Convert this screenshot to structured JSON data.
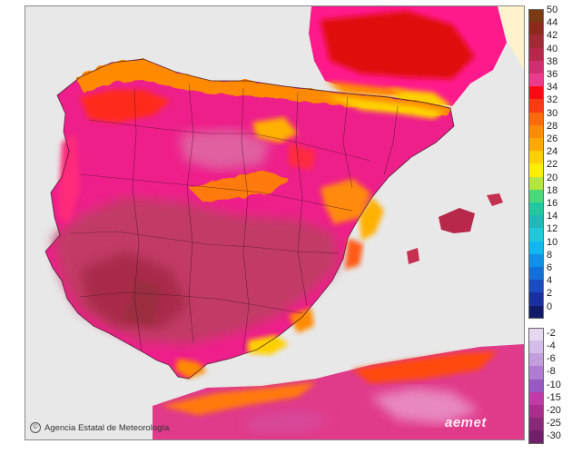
{
  "map": {
    "credit": "Agencia Estatal de Meteorología",
    "logo_text": "aemet",
    "credit_icon": "copyright-icon"
  },
  "legend": {
    "warm": [
      {
        "label": "50",
        "color": "#7a3a12"
      },
      {
        "label": "44",
        "color": "#8c2a1c"
      },
      {
        "label": "42",
        "color": "#a02b36"
      },
      {
        "label": "40",
        "color": "#b8284a"
      },
      {
        "label": "38",
        "color": "#d02e70"
      },
      {
        "label": "36",
        "color": "#ee3a8c"
      },
      {
        "label": "34",
        "color": "#ff0a14"
      },
      {
        "label": "32",
        "color": "#ff3a14"
      },
      {
        "label": "30",
        "color": "#ff6a0a"
      },
      {
        "label": "28",
        "color": "#ff8c00"
      },
      {
        "label": "26",
        "color": "#ffaa00"
      },
      {
        "label": "24",
        "color": "#ffd000"
      },
      {
        "label": "22",
        "color": "#ffee00"
      },
      {
        "label": "20",
        "color": "#b4e640"
      },
      {
        "label": "18",
        "color": "#4ad878"
      },
      {
        "label": "16",
        "color": "#22c8a0"
      },
      {
        "label": "14",
        "color": "#20b8b8"
      },
      {
        "label": "12",
        "color": "#20c8dc"
      },
      {
        "label": "10",
        "color": "#10b8f0"
      },
      {
        "label": "8",
        "color": "#1090e6"
      },
      {
        "label": "6",
        "color": "#1470d8"
      },
      {
        "label": "4",
        "color": "#1a4cc0"
      },
      {
        "label": "2",
        "color": "#1a30a0"
      },
      {
        "label": "0",
        "color": "#101c6a"
      }
    ],
    "cold": [
      {
        "label": "-2",
        "color": "#e6d8f0"
      },
      {
        "label": "-4",
        "color": "#d4bde8"
      },
      {
        "label": "-6",
        "color": "#c29edc"
      },
      {
        "label": "-8",
        "color": "#ae7cd2"
      },
      {
        "label": "-10",
        "color": "#9858c6"
      },
      {
        "label": "-15",
        "color": "#c03aa8"
      },
      {
        "label": "-20",
        "color": "#a8308c"
      },
      {
        "label": "-25",
        "color": "#8c2878"
      },
      {
        "label": "-30",
        "color": "#702068"
      }
    ]
  }
}
